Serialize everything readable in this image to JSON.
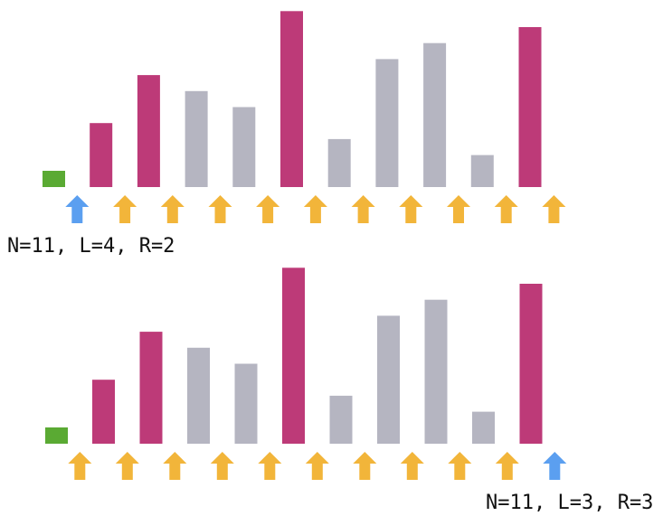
{
  "colors": {
    "selected": "#bd3a78",
    "unselected": "#b5b5c1",
    "marker": "#5aaa33",
    "arrow_default": "#f2b53a",
    "arrow_current": "#5b9ff0"
  },
  "panels": [
    {
      "caption": "N=11, L=4, R=2",
      "heights": [
        0,
        4,
        7,
        6,
        5,
        11,
        3,
        8,
        9,
        2,
        10
      ],
      "selected": [
        false,
        true,
        true,
        false,
        false,
        true,
        false,
        false,
        false,
        false,
        true
      ],
      "current_arrow": 0,
      "arrow_count": 11
    },
    {
      "caption": "N=11, L=3, R=3",
      "heights": [
        0,
        4,
        7,
        6,
        5,
        11,
        3,
        8,
        9,
        2,
        10
      ],
      "selected": [
        false,
        true,
        true,
        false,
        false,
        true,
        false,
        false,
        false,
        false,
        true
      ],
      "current_arrow": 10,
      "arrow_count": 11
    }
  ]
}
